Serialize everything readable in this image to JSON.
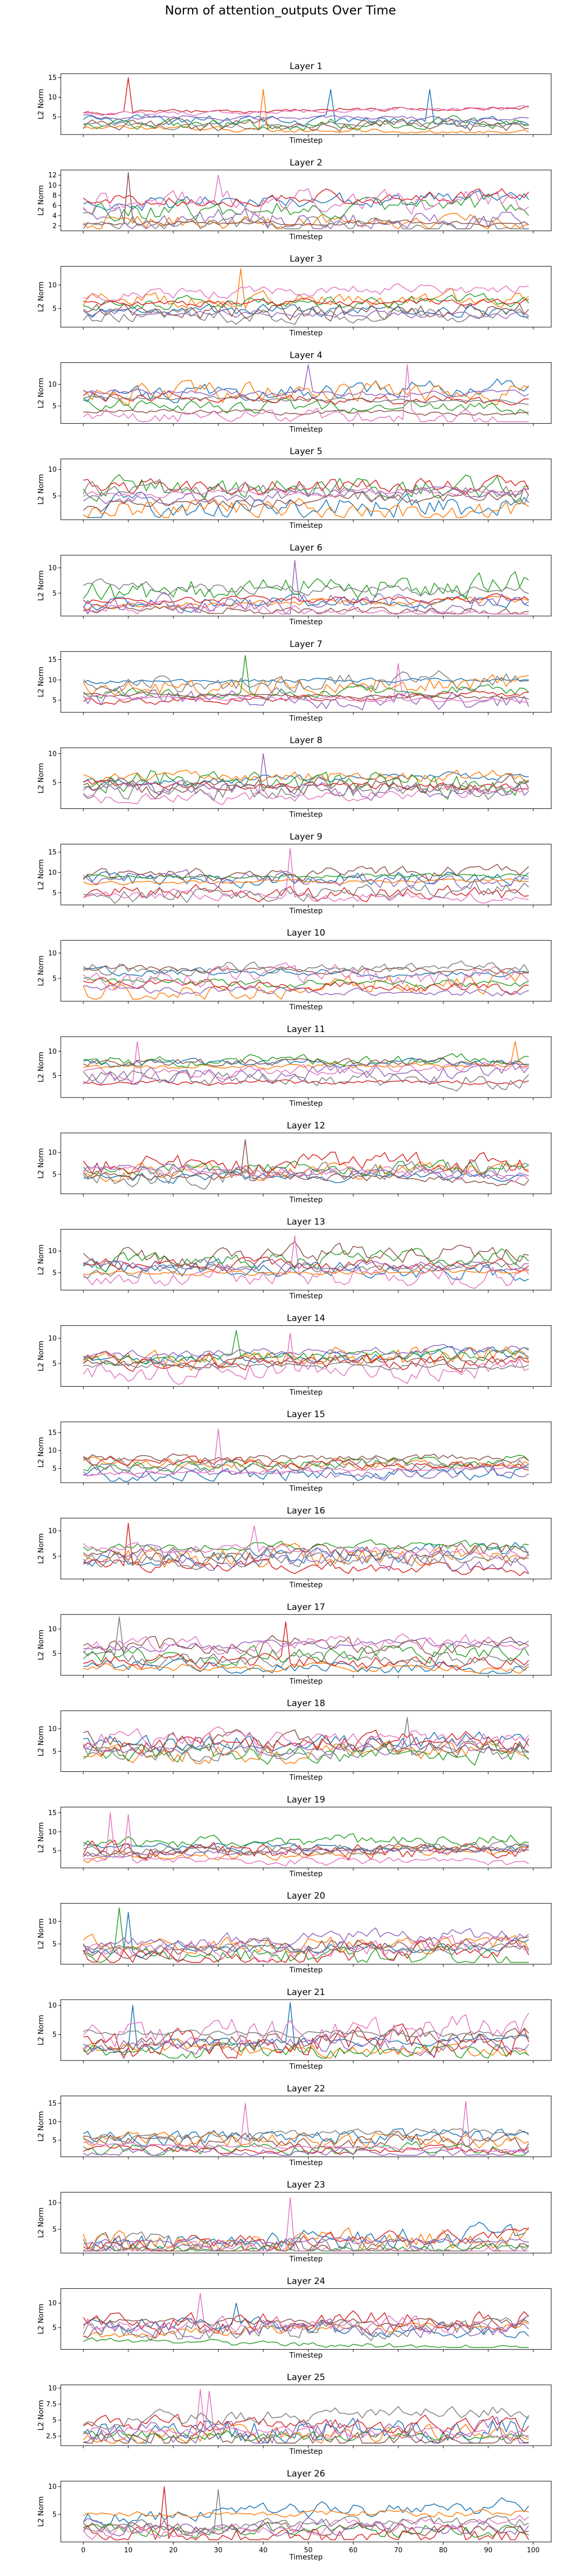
{
  "suptitle": "Norm of attention_outputs Over Time",
  "xlabel": "Timestep",
  "ylabel": "L2 Norm",
  "colors": [
    "#1f77b4",
    "#ff7f0e",
    "#2ca02c",
    "#d62728",
    "#9467bd",
    "#8c564b",
    "#e377c2",
    "#7f7f7f"
  ],
  "chart_data": {
    "type": "line",
    "x_range": [
      0,
      99
    ],
    "xlim": [
      -5,
      104
    ],
    "x_ticks": [
      0,
      10,
      20,
      30,
      40,
      50,
      60,
      70,
      80,
      90,
      100
    ],
    "n_series_per_panel": 8,
    "grid": false,
    "legend": "none",
    "panels": [
      {
        "title": "Layer 1",
        "ylim": [
          0.5,
          16
        ],
        "yticks": [
          5,
          10,
          15
        ],
        "lo": 2,
        "hi": 8,
        "spikes": [
          [
            10,
            15,
            3
          ],
          [
            40,
            12,
            1
          ],
          [
            55,
            12,
            0
          ],
          [
            77,
            12,
            0
          ]
        ],
        "seed": 1
      },
      {
        "title": "Layer 2",
        "ylim": [
          1,
          13
        ],
        "yticks": [
          2,
          4,
          6,
          8,
          10,
          12
        ],
        "lo": 2,
        "hi": 9,
        "spikes": [
          [
            10,
            12.5,
            5
          ],
          [
            30,
            12,
            6
          ]
        ],
        "seed": 2
      },
      {
        "title": "Layer 3",
        "ylim": [
          1,
          14
        ],
        "yticks": [
          5,
          10
        ],
        "lo": 3,
        "hi": 11,
        "spikes": [
          [
            35,
            13.5,
            1
          ]
        ],
        "seed": 3
      },
      {
        "title": "Layer 4",
        "ylim": [
          1,
          15
        ],
        "yticks": [
          5,
          10
        ],
        "lo": 3,
        "hi": 11,
        "spikes": [
          [
            50,
            14.5,
            4
          ],
          [
            72,
            14.5,
            6
          ]
        ],
        "seed": 4
      },
      {
        "title": "Layer 5",
        "ylim": [
          0.5,
          12
        ],
        "yticks": [
          5,
          10
        ],
        "lo": 2,
        "hi": 9,
        "spikes": [],
        "seed": 5
      },
      {
        "title": "Layer 6",
        "ylim": [
          0.5,
          12.5
        ],
        "yticks": [
          5,
          10
        ],
        "lo": 2,
        "hi": 9,
        "spikes": [
          [
            47,
            11.5,
            4
          ]
        ],
        "seed": 6
      },
      {
        "title": "Layer 7",
        "ylim": [
          2,
          17
        ],
        "yticks": [
          5,
          10,
          15
        ],
        "lo": 4,
        "hi": 13,
        "spikes": [
          [
            36,
            16,
            2
          ],
          [
            70,
            14,
            6
          ]
        ],
        "seed": 7
      },
      {
        "title": "Layer 8",
        "ylim": [
          0.5,
          11
        ],
        "yticks": [
          5,
          10
        ],
        "lo": 2,
        "hi": 8,
        "spikes": [
          [
            40,
            10,
            4
          ]
        ],
        "seed": 8
      },
      {
        "title": "Layer 9",
        "ylim": [
          2,
          17
        ],
        "yticks": [
          5,
          10,
          15
        ],
        "lo": 4,
        "hi": 13,
        "spikes": [
          [
            46,
            16,
            6
          ]
        ],
        "seed": 9
      },
      {
        "title": "Layer 10",
        "ylim": [
          0.5,
          12.5
        ],
        "yticks": [
          5,
          10
        ],
        "lo": 2,
        "hi": 10,
        "spikes": [],
        "seed": 10
      },
      {
        "title": "Layer 11",
        "ylim": [
          0.5,
          13
        ],
        "yticks": [
          5,
          10
        ],
        "lo": 3,
        "hi": 10,
        "spikes": [
          [
            12,
            12,
            6
          ],
          [
            96,
            12,
            1
          ]
        ],
        "seed": 11
      },
      {
        "title": "Layer 12",
        "ylim": [
          0.5,
          14.5
        ],
        "yticks": [
          5,
          10
        ],
        "lo": 3,
        "hi": 10,
        "spikes": [
          [
            36,
            13,
            5
          ]
        ],
        "seed": 12
      },
      {
        "title": "Layer 13",
        "ylim": [
          1,
          15
        ],
        "yticks": [
          5,
          10
        ],
        "lo": 3,
        "hi": 11,
        "spikes": [
          [
            47,
            13.5,
            6
          ]
        ],
        "seed": 13
      },
      {
        "title": "Layer 14",
        "ylim": [
          0.5,
          12.5
        ],
        "yticks": [
          5,
          10
        ],
        "lo": 2,
        "hi": 9,
        "spikes": [
          [
            34,
            11.5,
            2
          ],
          [
            46,
            11,
            6
          ]
        ],
        "seed": 14
      },
      {
        "title": "Layer 15",
        "ylim": [
          1,
          18
        ],
        "yticks": [
          5,
          10,
          15
        ],
        "lo": 3,
        "hi": 11,
        "spikes": [
          [
            30,
            16,
            6
          ]
        ],
        "seed": 15
      },
      {
        "title": "Layer 16",
        "ylim": [
          0.5,
          12.5
        ],
        "yticks": [
          5,
          10
        ],
        "lo": 2,
        "hi": 9,
        "spikes": [
          [
            10,
            11.5,
            3
          ],
          [
            38,
            11,
            6
          ]
        ],
        "seed": 16
      },
      {
        "title": "Layer 17",
        "ylim": [
          0.5,
          13
        ],
        "yticks": [
          5,
          10
        ],
        "lo": 2,
        "hi": 9,
        "spikes": [
          [
            8,
            12.5,
            7
          ],
          [
            45,
            11.5,
            3
          ]
        ],
        "seed": 17
      },
      {
        "title": "Layer 18",
        "ylim": [
          0.5,
          14
        ],
        "yticks": [
          5,
          10
        ],
        "lo": 3,
        "hi": 10,
        "spikes": [
          [
            72,
            12.5,
            7
          ]
        ],
        "seed": 18
      },
      {
        "title": "Layer 19",
        "ylim": [
          0.5,
          16.5
        ],
        "yticks": [
          5,
          10,
          15
        ],
        "lo": 2,
        "hi": 9,
        "spikes": [
          [
            6,
            15,
            6
          ],
          [
            10,
            14.5,
            6
          ]
        ],
        "seed": 19
      },
      {
        "title": "Layer 20",
        "ylim": [
          0.5,
          14
        ],
        "yticks": [
          5,
          10
        ],
        "lo": 2,
        "hi": 8,
        "spikes": [
          [
            8,
            13,
            2
          ],
          [
            10,
            12,
            0
          ]
        ],
        "seed": 20
      },
      {
        "title": "Layer 21",
        "ylim": [
          0.5,
          11
        ],
        "yticks": [
          5,
          10
        ],
        "lo": 2,
        "hi": 7,
        "spikes": [
          [
            11,
            10,
            0
          ],
          [
            46,
            10.5,
            0
          ]
        ],
        "seed": 21
      },
      {
        "title": "Layer 22",
        "ylim": [
          0.5,
          17
        ],
        "yticks": [
          5,
          10,
          15
        ],
        "lo": 2,
        "hi": 9,
        "spikes": [
          [
            36,
            15,
            6
          ],
          [
            85,
            15.5,
            6
          ]
        ],
        "seed": 22
      },
      {
        "title": "Layer 23",
        "ylim": [
          0.5,
          12
        ],
        "yticks": [
          5,
          10
        ],
        "lo": 1,
        "hi": 4,
        "spikes": [
          [
            46,
            11,
            6
          ]
        ],
        "seed": 23
      },
      {
        "title": "Layer 24",
        "ylim": [
          0.5,
          13
        ],
        "yticks": [
          5,
          10
        ],
        "lo": 2,
        "hi": 8,
        "spikes": [
          [
            26,
            12,
            6
          ],
          [
            34,
            10,
            0
          ]
        ],
        "seed": 24
      },
      {
        "title": "Layer 25",
        "ylim": [
          1,
          10.5
        ],
        "yticks": [
          2.5,
          5.0,
          7.5,
          10.0
        ],
        "lo": 2,
        "hi": 7,
        "spikes": [
          [
            26,
            9.8,
            6
          ],
          [
            28,
            9.5,
            6
          ]
        ],
        "seed": 25
      },
      {
        "title": "Layer 26",
        "ylim": [
          0,
          11
        ],
        "yticks": [
          5,
          10
        ],
        "lo": 1,
        "hi": 7,
        "spikes": [
          [
            18,
            10,
            3
          ],
          [
            30,
            9.5,
            7
          ]
        ],
        "seed": 26
      }
    ]
  }
}
